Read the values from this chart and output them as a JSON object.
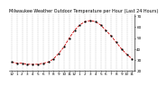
{
  "title": "Milwaukee Weather Outdoor Temperature per Hour (Last 24 Hours)",
  "hours": [
    0,
    1,
    2,
    3,
    4,
    5,
    6,
    7,
    8,
    9,
    10,
    11,
    12,
    13,
    14,
    15,
    16,
    17,
    18,
    19,
    20,
    21,
    22,
    23
  ],
  "hour_labels": [
    "12",
    "1",
    "2",
    "3",
    "4",
    "5",
    "6",
    "7",
    "8",
    "9",
    "10",
    "11",
    "12",
    "1",
    "2",
    "3",
    "4",
    "5",
    "6",
    "7",
    "8",
    "9",
    "10",
    "11"
  ],
  "temperatures": [
    28,
    27,
    27,
    26,
    26,
    26,
    27,
    28,
    31,
    36,
    42,
    50,
    57,
    62,
    65,
    66,
    65,
    62,
    57,
    52,
    46,
    40,
    35,
    31
  ],
  "line_color": "#cc0000",
  "marker_color": "#000000",
  "bg_color": "#ffffff",
  "grid_color": "#888888",
  "ylim_min": 20,
  "ylim_max": 72,
  "yticks": [
    20,
    30,
    40,
    50,
    60,
    70
  ],
  "title_fontsize": 3.5,
  "tick_fontsize": 3.0
}
